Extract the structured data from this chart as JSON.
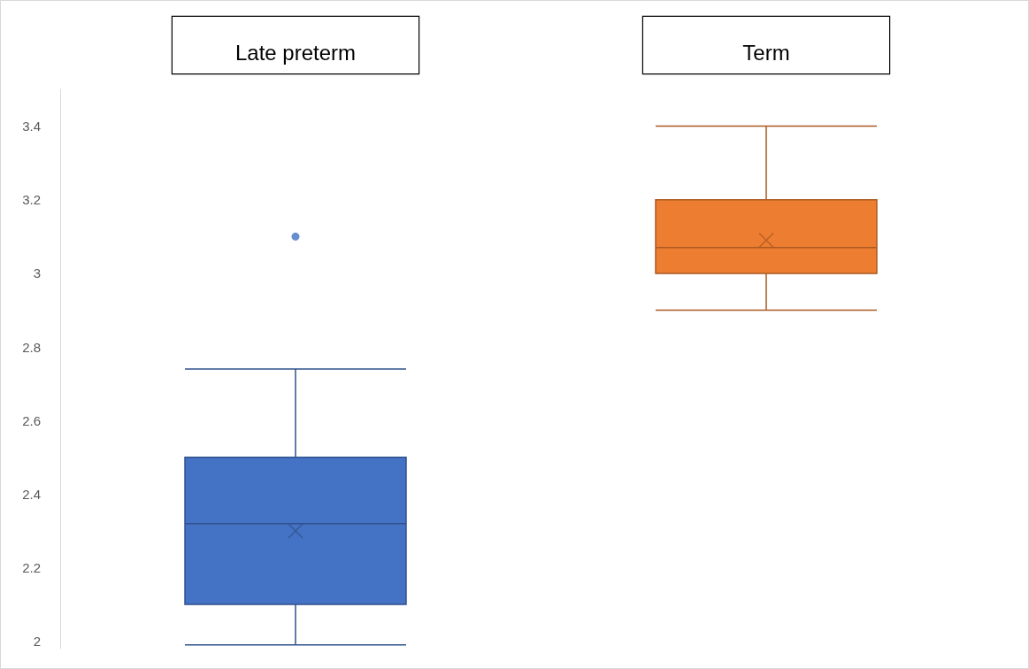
{
  "chart_data": {
    "type": "box",
    "categories": [
      "Late preterm",
      "Term"
    ],
    "colors": [
      "#4472c4",
      "#ed7d31"
    ],
    "boxes": [
      {
        "low": 1.99,
        "q1": 2.1,
        "median": 2.32,
        "q3": 2.5,
        "high": 2.74,
        "mean": 2.3,
        "outliers": [
          3.1
        ]
      },
      {
        "low": 2.9,
        "q1": 3.0,
        "median": 3.07,
        "q3": 3.2,
        "high": 3.4,
        "mean": 3.09
      }
    ],
    "ylim": [
      1.98,
      3.5
    ],
    "yticks": [
      2,
      2.2,
      2.4,
      2.6,
      2.8,
      3,
      3.2,
      3.4
    ]
  }
}
